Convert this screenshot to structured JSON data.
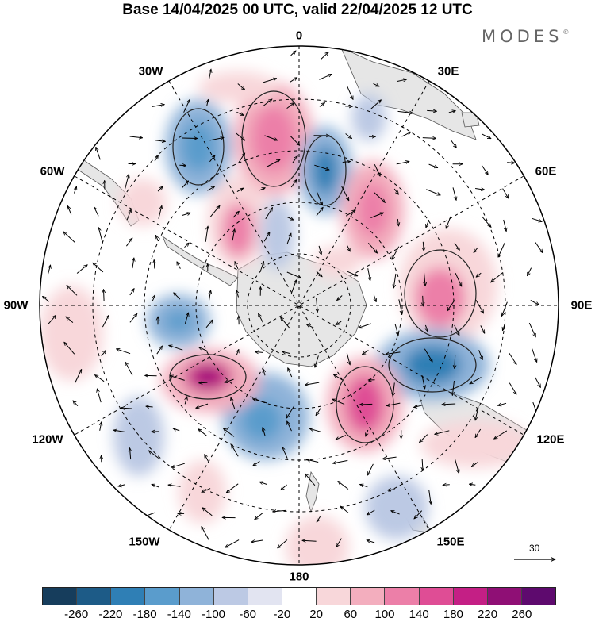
{
  "title": "Base 14/04/2025 00 UTC, valid 22/04/2025 12 UTC",
  "logo": {
    "text": "MODES",
    "mark": "©"
  },
  "longitude_labels": {
    "lon_0": "0",
    "lon_30e": "30E",
    "lon_60e": "60E",
    "lon_90e": "90E",
    "lon_120e": "120E",
    "lon_150e": "150E",
    "lon_180": "180",
    "lon_150w": "150W",
    "lon_120w": "120W",
    "lon_90w": "90W",
    "lon_60w": "60W",
    "lon_30w": "30W"
  },
  "vector_reference": {
    "value": "30",
    "icon": "arrow-right-icon"
  },
  "colorbar": {
    "colors": [
      "#163d5c",
      "#1d5b87",
      "#2f7fb5",
      "#5a9ccc",
      "#8fb3d9",
      "#bcc9e4",
      "#e2e4f1",
      "#ffffff",
      "#f8d7da",
      "#f3aebe",
      "#ec7fa8",
      "#df4d95",
      "#c41f85",
      "#8f0f75",
      "#5e0a6e"
    ],
    "ticks": [
      "-260",
      "-220",
      "-180",
      "-140",
      "-100",
      "-60",
      "-20",
      "20",
      "60",
      "100",
      "140",
      "180",
      "220",
      "260"
    ]
  },
  "map": {
    "projection": "south polar stereographic",
    "field": "geopotential height anomaly with wind vectors",
    "colors": {
      "land": "#e8e8e8",
      "grid": "#000000",
      "coast": "#555555",
      "contour": "#222222"
    }
  }
}
